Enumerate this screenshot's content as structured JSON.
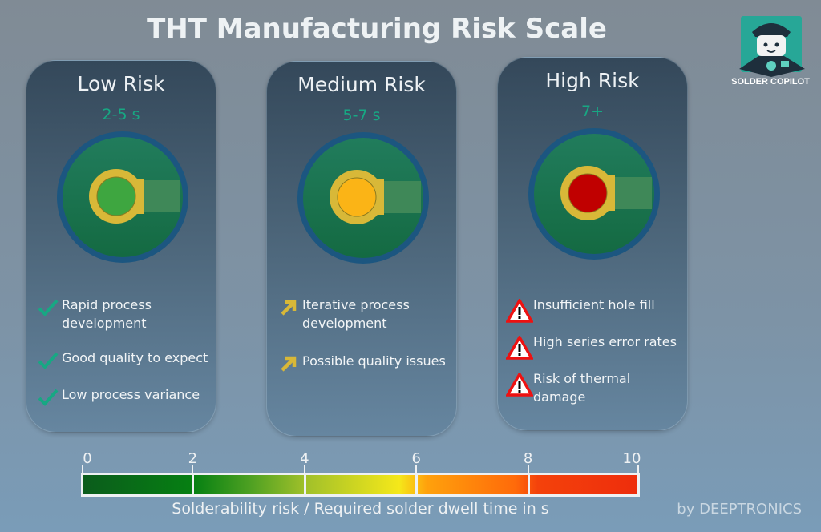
{
  "title": "THT Manufacturing Risk Scale",
  "logo": {
    "label": "SOLDER COPILOT"
  },
  "colors": {
    "time": "#17a883",
    "pcb": "#1a7a4c",
    "pad": "#d8b838",
    "low": "#3ea640",
    "medium": "#fbb416",
    "high": "#c00000"
  },
  "cards": [
    {
      "title": "Low Risk",
      "time": "2-5 s",
      "hole_color": "#3ea640",
      "items": [
        {
          "icon": "check-icon",
          "text": "Rapid process development"
        },
        {
          "icon": "check-icon",
          "text": "Good quality to expect"
        },
        {
          "icon": "check-icon",
          "text": "Low process variance"
        }
      ]
    },
    {
      "title": "Medium Risk",
      "time": "5-7 s",
      "hole_color": "#fbb416",
      "items": [
        {
          "icon": "arrow-up-right-icon",
          "text": "Iterative process development"
        },
        {
          "icon": "arrow-up-right-icon",
          "text": "Possible quality issues"
        }
      ]
    },
    {
      "title": "High Risk",
      "time": "7+",
      "hole_color": "#c00000",
      "items": [
        {
          "icon": "warning-icon",
          "text": "Insufficient hole fill"
        },
        {
          "icon": "warning-icon",
          "text": "High series error rates"
        },
        {
          "icon": "warning-icon",
          "text": "Risk of thermal damage"
        }
      ]
    }
  ],
  "scale": {
    "ticks": [
      "0",
      "2",
      "4",
      "6",
      "8",
      "10"
    ],
    "min": 0,
    "max": 10,
    "label": "Solderability risk / Required solder dwell time in s"
  },
  "credit": "by DEEPTRONICS"
}
